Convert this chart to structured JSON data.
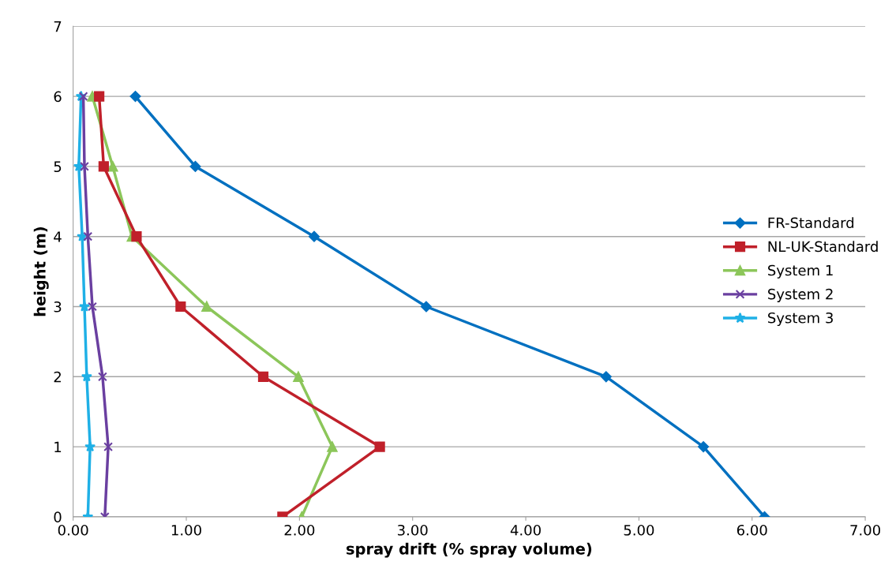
{
  "chart_data": {
    "type": "line",
    "xlabel": "spray drift (% spray volume)",
    "ylabel": "height (m)",
    "xlim": [
      0,
      7
    ],
    "ylim": [
      0,
      7
    ],
    "xticks": [
      {
        "value": 0,
        "label": "0.00"
      },
      {
        "value": 1,
        "label": "1.00"
      },
      {
        "value": 2,
        "label": "2.00"
      },
      {
        "value": 3,
        "label": "3.00"
      },
      {
        "value": 4,
        "label": "4.00"
      },
      {
        "value": 5,
        "label": "5.00"
      },
      {
        "value": 6,
        "label": "6.00"
      },
      {
        "value": 7,
        "label": "7.00"
      }
    ],
    "yticks": [
      0,
      1,
      2,
      3,
      4,
      5,
      6,
      7
    ],
    "grid": "y",
    "legend": "right",
    "series": [
      {
        "name": "FR-Standard",
        "color": "#0070c0",
        "marker": "diamond",
        "x": [
          0.55,
          1.08,
          2.13,
          3.12,
          4.71,
          5.57,
          6.11
        ],
        "values": [
          6,
          5,
          4,
          3,
          2,
          1,
          0
        ]
      },
      {
        "name": "NL-UK-Standard",
        "color": "#c0202a",
        "marker": "square",
        "x": [
          0.23,
          0.27,
          0.56,
          0.95,
          1.68,
          2.71,
          1.85
        ],
        "values": [
          6,
          5,
          4,
          3,
          2,
          1,
          0
        ]
      },
      {
        "name": "System 1",
        "color": "#8cc65a",
        "marker": "triangle",
        "x": [
          0.17,
          0.35,
          0.52,
          1.18,
          1.99,
          2.29,
          2.02
        ],
        "values": [
          6,
          5,
          4,
          3,
          2,
          1,
          0
        ]
      },
      {
        "name": "System 2",
        "color": "#6a3fa0",
        "marker": "cross",
        "x": [
          0.09,
          0.1,
          0.13,
          0.17,
          0.26,
          0.31,
          0.28
        ],
        "values": [
          6,
          5,
          4,
          3,
          2,
          1,
          0
        ]
      },
      {
        "name": "System 3",
        "color": "#1fb0e6",
        "marker": "star",
        "x": [
          0.07,
          0.05,
          0.08,
          0.1,
          0.12,
          0.15,
          0.13
        ],
        "values": [
          6,
          5,
          4,
          3,
          2,
          1,
          0
        ]
      }
    ]
  }
}
